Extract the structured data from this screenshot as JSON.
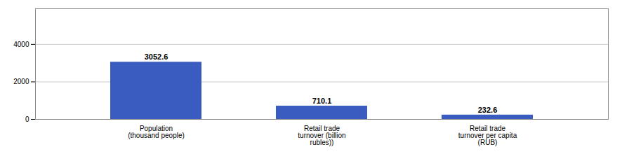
{
  "chart_data": {
    "type": "bar",
    "categories": [
      "Population\n(thousand people)",
      "Retail trade\nturnover (billion\nrubles))",
      "Retail trade\nturnover per capita\n(RUB)"
    ],
    "values": [
      3052.6,
      710.1,
      232.6
    ],
    "color": "#3a5bbf",
    "ylim": [
      0,
      5900
    ],
    "yticks": [
      0,
      2000,
      4000
    ],
    "grid": true,
    "data_labels": true
  }
}
